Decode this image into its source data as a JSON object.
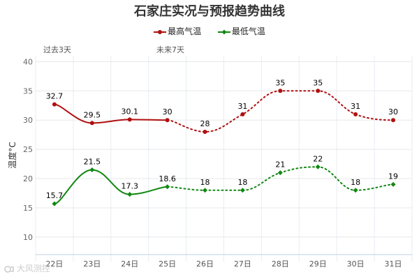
{
  "chart_data": {
    "type": "line",
    "title": "石家庄实况与预报趋势曲线",
    "categories": [
      "22日",
      "23日",
      "24日",
      "25日",
      "26日",
      "27日",
      "28日",
      "29日",
      "30日",
      "31日"
    ],
    "xlabel": "",
    "ylabel": "温度°C",
    "ylim": [
      7,
      41
    ],
    "yticks": [
      10,
      15,
      20,
      25,
      30,
      35,
      40
    ],
    "grid": true,
    "legend_position": "top-center",
    "period_labels": {
      "past": "过去3天",
      "future": "未来7天"
    },
    "series": [
      {
        "name": "最高气温",
        "color": "#b01010",
        "marker": "circle",
        "values": [
          32.7,
          29.5,
          30.1,
          30,
          28,
          31,
          35,
          35,
          31,
          30
        ],
        "labels": [
          "32.7",
          "29.5",
          "30.1",
          "30",
          "28",
          "31",
          "35",
          "35",
          "31",
          "30"
        ]
      },
      {
        "name": "最低气温",
        "color": "#118811",
        "marker": "diamond",
        "values": [
          15.7,
          21.5,
          17.3,
          18.6,
          18,
          18,
          21,
          22,
          18,
          19
        ],
        "labels": [
          "15.7",
          "21.5",
          "17.3",
          "18.6",
          "18",
          "18",
          "21",
          "22",
          "18",
          "19"
        ]
      }
    ],
    "observed_points": 4
  },
  "watermark": "大风测控"
}
